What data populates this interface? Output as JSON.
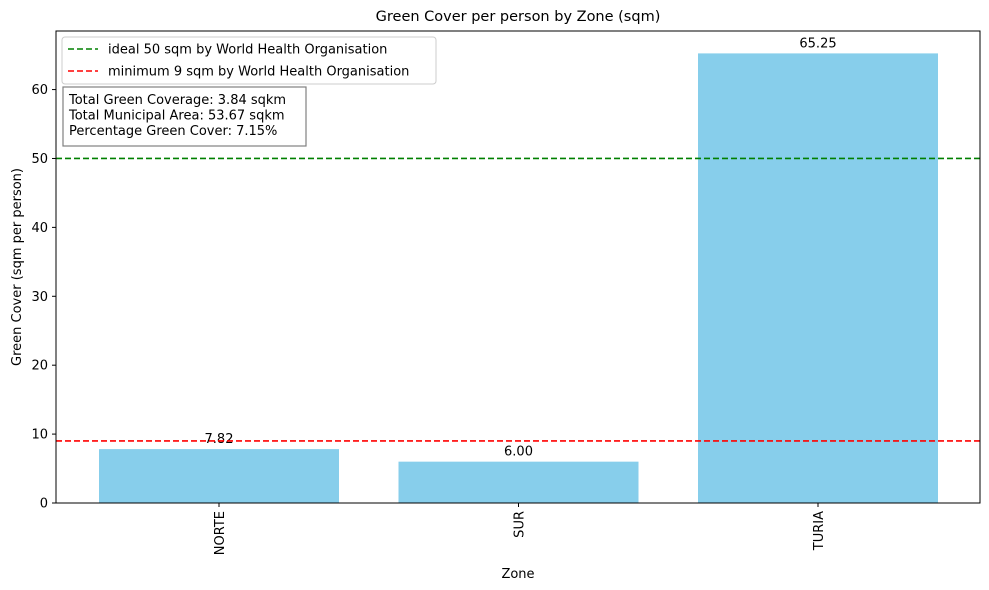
{
  "chart_data": {
    "type": "bar",
    "title": "Green Cover per person by Zone (sqm)",
    "xlabel": "Zone",
    "ylabel": "Green Cover (sqm per person)",
    "categories": [
      "NORTE",
      "SUR",
      "TURIA"
    ],
    "values": [
      7.82,
      6.0,
      65.25
    ],
    "value_labels": [
      "7.82",
      "6.00",
      "65.25"
    ],
    "ylim": [
      0,
      68.5
    ],
    "yticks": [
      0,
      10,
      20,
      30,
      40,
      50,
      60
    ],
    "bar_color": "#87ceeb",
    "grid": false,
    "reference_lines": [
      {
        "label": "ideal 50 sqm by World Health Organisation",
        "value": 50,
        "color": "#008000",
        "style": "dashed"
      },
      {
        "label": "minimum 9 sqm by World Health Organisation",
        "value": 9,
        "color": "#ff0000",
        "style": "dashed"
      }
    ],
    "legend_position": "top-left",
    "stats_box": [
      "Total Green Coverage: 3.84 sqkm",
      "Total Municipal Area: 53.67 sqkm",
      "Percentage Green Cover: 7.15%"
    ]
  }
}
